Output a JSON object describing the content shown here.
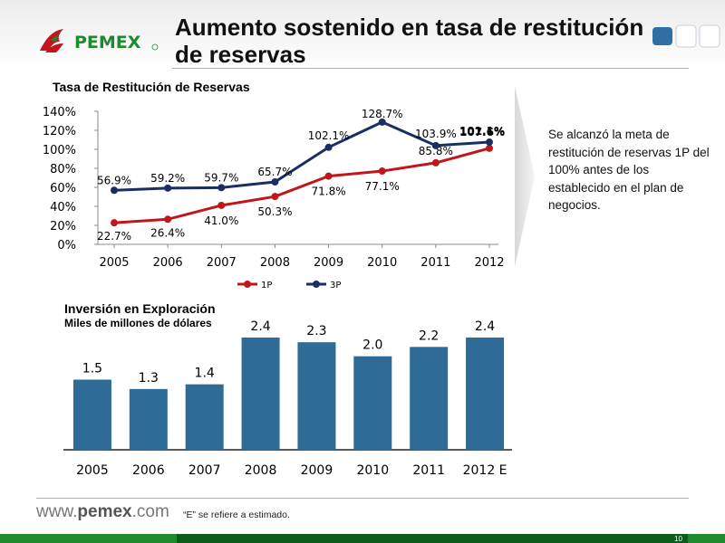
{
  "header": {
    "title_line1": "Aumento sostenido en tasa de restitución",
    "title_line2": "de reservas",
    "logo_text": "PEMEX"
  },
  "note": {
    "text": "Se alcanzó la meta de restitución de reservas 1P del 100% antes de los establecido en el plan de negocios."
  },
  "footer": {
    "website_prefix": "www.",
    "website_brand": "pemex",
    "website_suffix": ".com",
    "footnote": "“E” se refiere a estimado.",
    "page_number": "10"
  },
  "colors": {
    "series_1p": "#c0161c",
    "series_3p": "#1a2e63",
    "bar": "#2e6b96",
    "brand_green": "#1d8a2c"
  },
  "chart_data": [
    {
      "type": "line",
      "title": "Tasa de Restitución de Reservas",
      "categories": [
        "2005",
        "2006",
        "2007",
        "2008",
        "2009",
        "2010",
        "2011",
        "2012"
      ],
      "yticks": [
        "0%",
        "20%",
        "40%",
        "60%",
        "80%",
        "100%",
        "120%",
        "140%"
      ],
      "ylim": [
        0,
        140
      ],
      "grid": false,
      "legend_position": "bottom",
      "series": [
        {
          "name": "1P",
          "values": [
            22.7,
            26.4,
            41.0,
            50.3,
            71.8,
            77.1,
            85.8,
            101.1
          ],
          "labels": [
            "22.7%",
            "26.4%",
            "41.0%",
            "50.3%",
            "71.8%",
            "77.1%",
            "85.8%",
            "101.1%"
          ]
        },
        {
          "name": "3P",
          "values": [
            56.9,
            59.2,
            59.7,
            65.7,
            102.1,
            128.7,
            103.9,
            107.6
          ],
          "labels": [
            "56.9%",
            "59.2%",
            "59.7%",
            "65.7%",
            "102.1%",
            "128.7%",
            "103.9%",
            "107.6%"
          ]
        }
      ]
    },
    {
      "type": "bar",
      "title": "Inversión en Exploración",
      "subtitle": "Miles de millones de dólares",
      "categories": [
        "2005",
        "2006",
        "2007",
        "2008",
        "2009",
        "2010",
        "2011",
        "2012 E"
      ],
      "values": [
        1.5,
        1.3,
        1.4,
        2.4,
        2.3,
        2.0,
        2.2,
        2.4
      ],
      "labels": [
        "1.5",
        "1.3",
        "1.4",
        "2.4",
        "2.3",
        "2.0",
        "2.2",
        "2.4"
      ],
      "ylim": [
        0,
        2.4
      ]
    }
  ]
}
